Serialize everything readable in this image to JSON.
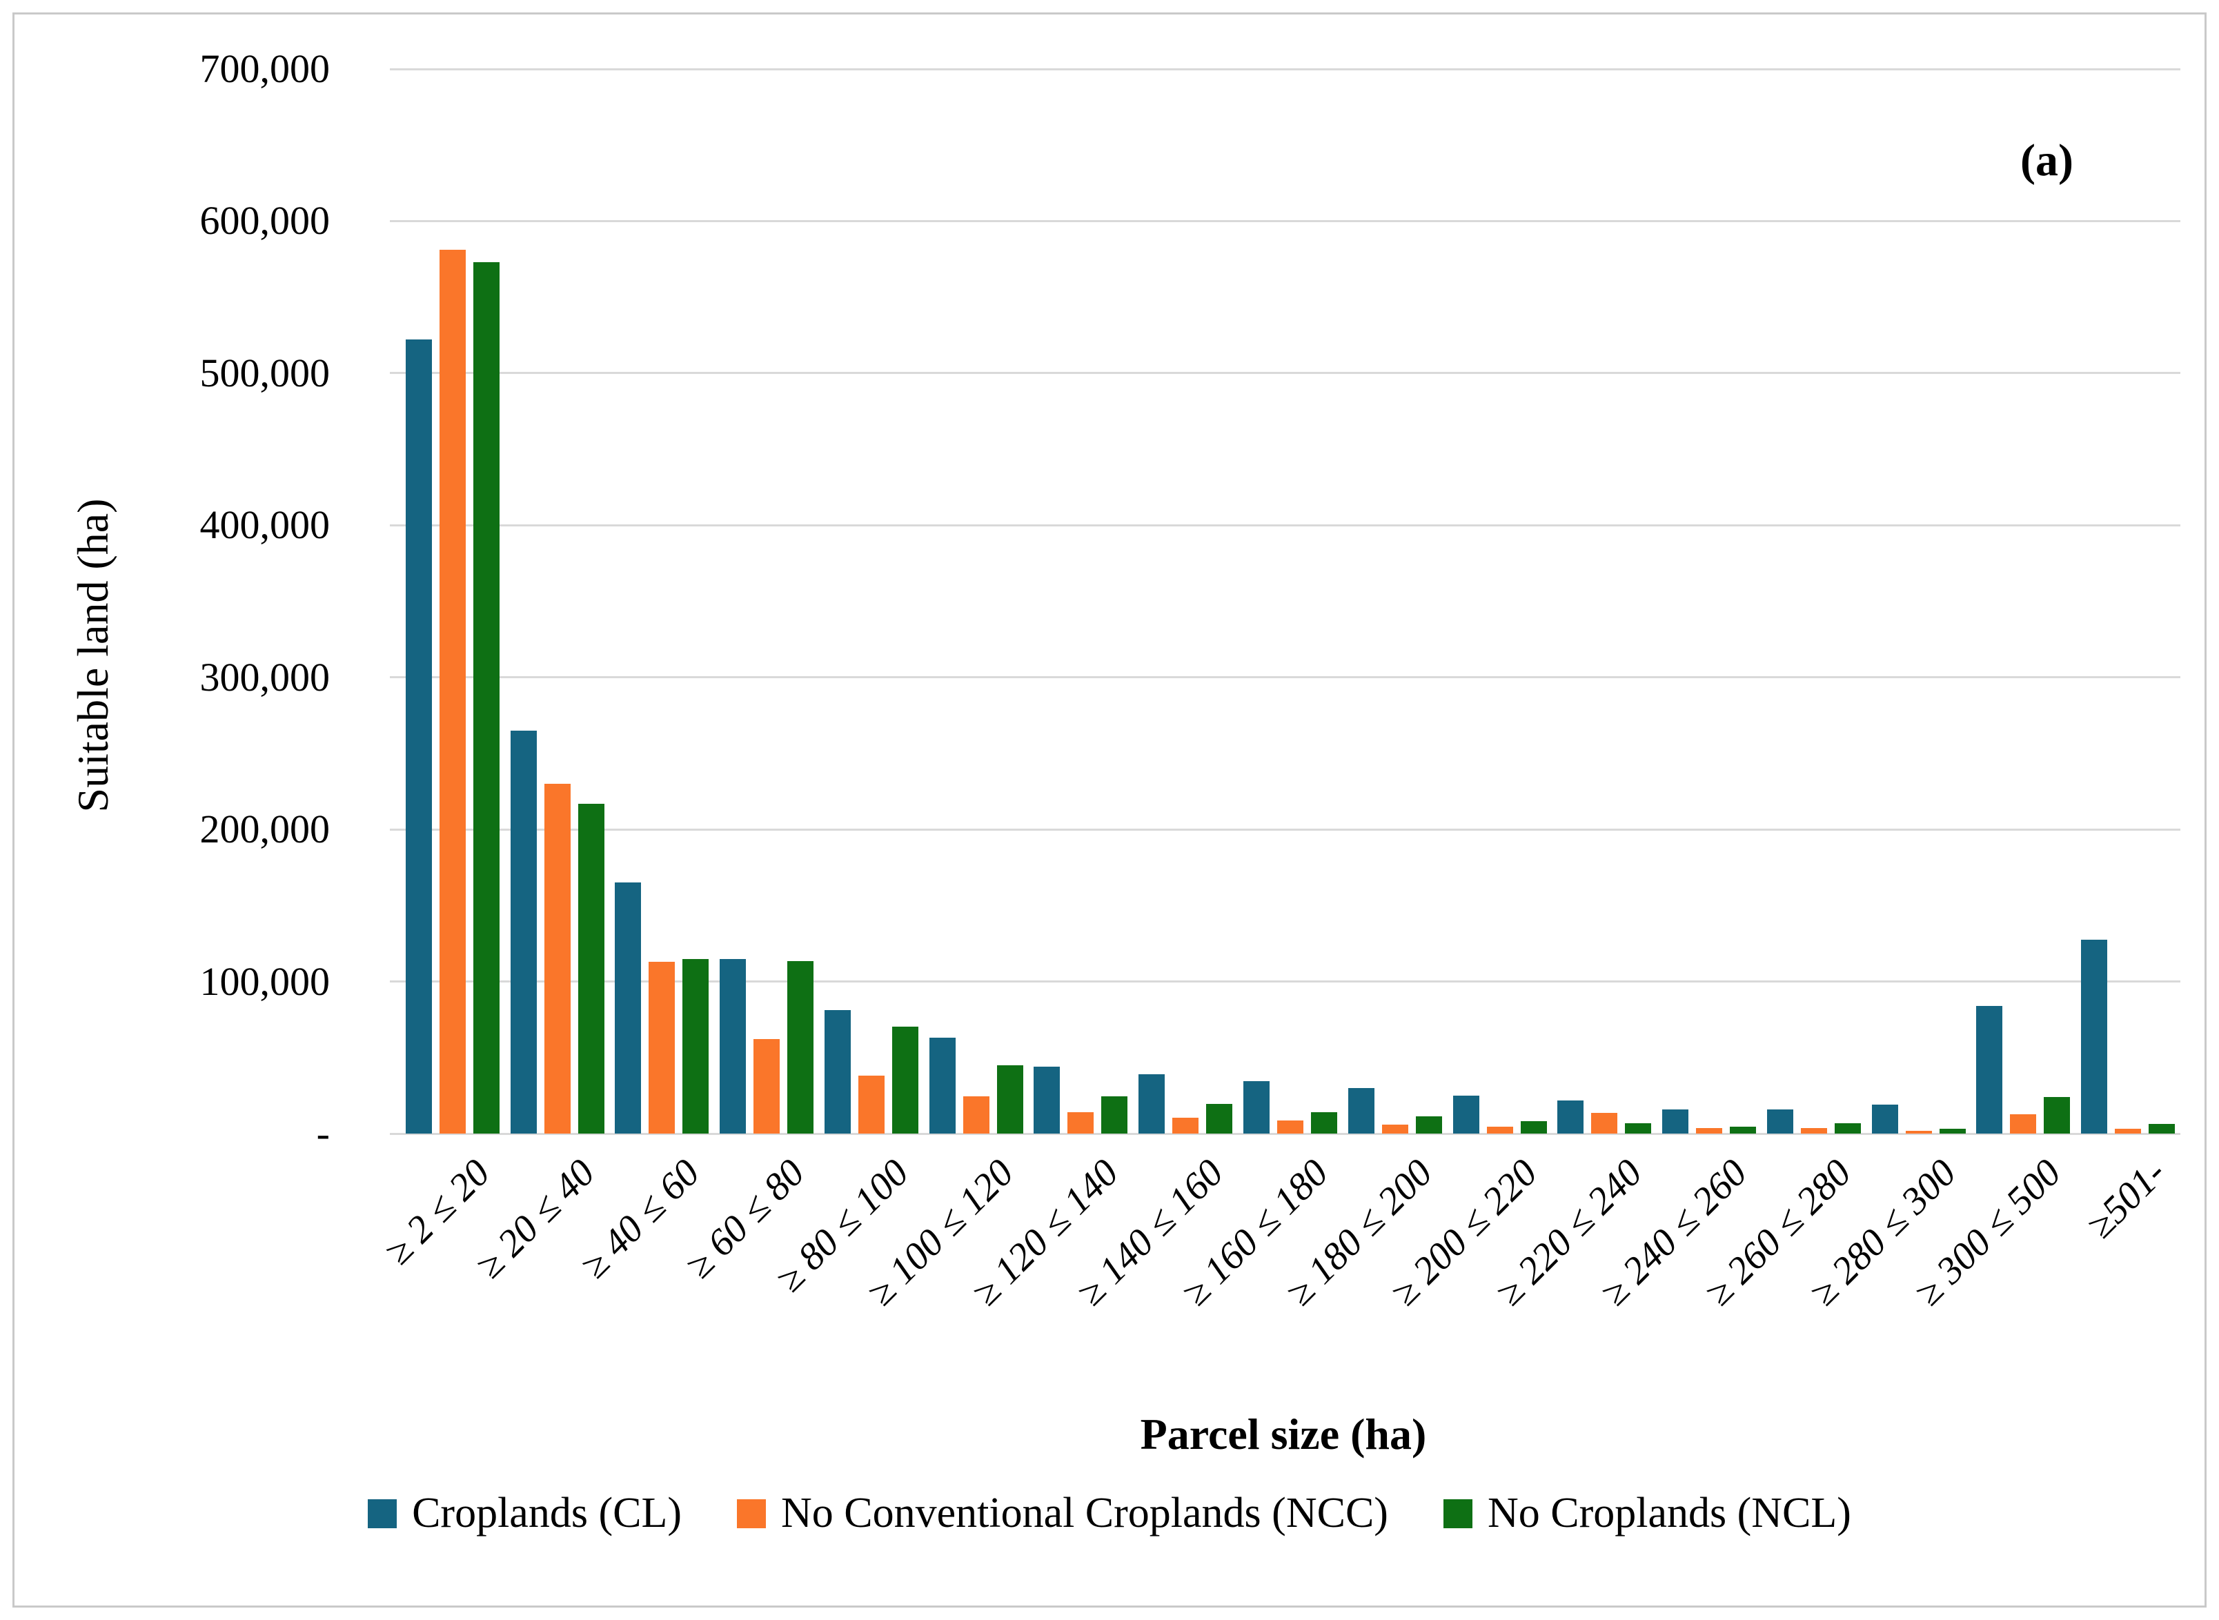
{
  "panel_label": "(a)",
  "chart_data": {
    "type": "bar",
    "title": "",
    "xlabel": "Parcel size (ha)",
    "ylabel": "Suitable land (ha)",
    "ylim": [
      0,
      700000
    ],
    "ytick_step": 100000,
    "ytick_labels": [
      "-",
      "100,000",
      "200,000",
      "300,000",
      "400,000",
      "500,000",
      "600,000",
      "700,000"
    ],
    "grid": true,
    "legend_position": "bottom",
    "categories": [
      "≥ 2 ≤ 20",
      "≥ 20 ≤ 40",
      "≥ 40 ≤ 60",
      "≥ 60 ≤ 80",
      "≥ 80 ≤ 100",
      "≥ 100 ≤ 120",
      "≥ 120 ≤ 140",
      "≥ 140 ≤ 160",
      "≥ 160 ≤ 180",
      "≥ 180 ≤ 200",
      "≥ 200 ≤ 220",
      "≥ 220 ≤ 240",
      "≥ 240 ≤ 260",
      "≥ 260 ≤ 280",
      "≥ 280 ≤ 300",
      "≥ 300 ≤ 500",
      "≥501-"
    ],
    "series": [
      {
        "name": "Croplands (CL)",
        "color": "#156481",
        "values": [
          522000,
          265000,
          165000,
          115000,
          81000,
          63000,
          44000,
          39000,
          34500,
          30000,
          25000,
          22000,
          16000,
          16000,
          19000,
          84000,
          127500
        ]
      },
      {
        "name": "No Conventional Croplands (NCC)",
        "color": "#FA762A",
        "values": [
          581000,
          230000,
          113000,
          62000,
          38000,
          24500,
          14000,
          10500,
          8500,
          6000,
          4500,
          13500,
          3500,
          3500,
          2000,
          12500,
          3000
        ]
      },
      {
        "name": "No Croplands (NCL)",
        "color": "#0E7014",
        "values": [
          573000,
          217000,
          115000,
          113500,
          70500,
          45000,
          24500,
          19500,
          14000,
          11500,
          8000,
          7000,
          4500,
          7000,
          3000,
          24000,
          6500
        ]
      }
    ]
  },
  "colors": {
    "gridline": "#D9D9D9",
    "frame_border": "#C9C9C9",
    "text": "#000000"
  }
}
